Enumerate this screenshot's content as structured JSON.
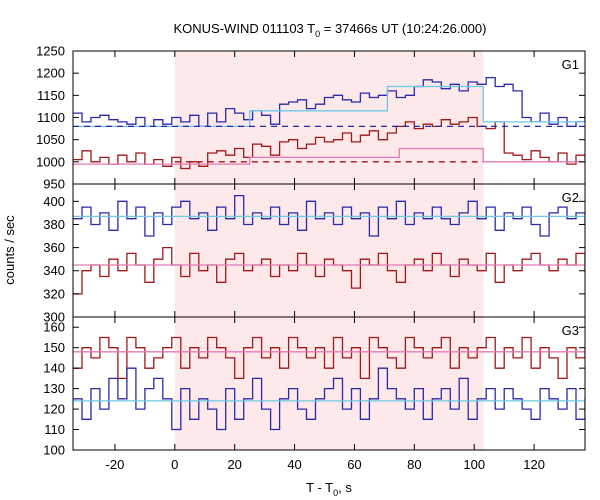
{
  "chart_data": {
    "type": "line",
    "title_main": "KONUS-WIND 011103 T",
    "title_sub": "0",
    "title_rest": " = 37466s UT (10:24:26.000)",
    "xlabel_main": "T - T",
    "xlabel_sub": "0",
    "xlabel_rest": ", s",
    "ylabel": "counts / sec",
    "xlim": [
      -34,
      137
    ],
    "xticks": [
      -20,
      0,
      20,
      40,
      60,
      80,
      100,
      120
    ],
    "xtick_labels": [
      "-20",
      "0",
      "20",
      "40",
      "60",
      "80",
      "100",
      "120"
    ],
    "shaded_interval": [
      0,
      103
    ],
    "colors": {
      "shade": "#fde8ea",
      "blue": "#2a2aa8",
      "red": "#a01818",
      "fit_blue": "#6ec8e8",
      "fit_pink": "#e07ab8",
      "frame": "#000000"
    },
    "panels": [
      {
        "name": "G1",
        "ylim": [
          950,
          1250
        ],
        "yticks": [
          950,
          1000,
          1050,
          1100,
          1150,
          1200,
          1250
        ],
        "ytick_labels": [
          "950",
          "1000",
          "1050",
          "1100",
          "1150",
          "1200",
          "1250"
        ],
        "bin_start": -34,
        "bin_width": 3,
        "blue_values": [
          1110,
          1090,
          1100,
          1105,
          1095,
          1090,
          1085,
          1100,
          1080,
          1095,
          1085,
          1100,
          1090,
          1105,
          1080,
          1110,
          1090,
          1120,
          1110,
          1095,
          1115,
          1105,
          1085,
          1130,
          1135,
          1140,
          1120,
          1130,
          1145,
          1150,
          1140,
          1135,
          1155,
          1145,
          1150,
          1160,
          1145,
          1150,
          1170,
          1185,
          1180,
          1165,
          1175,
          1160,
          1180,
          1175,
          1190,
          1170,
          1175,
          1160,
          1100,
          1090,
          1110,
          1085,
          1100,
          1080,
          1090,
          1105,
          1080
        ],
        "red_values": [
          1005,
          1025,
          1000,
          1010,
          995,
          1015,
          1000,
          1020,
          995,
          1005,
          990,
          1010,
          985,
          1000,
          990,
          1020,
          1025,
          1015,
          1030,
          1010,
          1040,
          1035,
          1015,
          1045,
          1050,
          1030,
          1040,
          1055,
          1045,
          1050,
          1065,
          1045,
          1060,
          1070,
          1050,
          1065,
          1080,
          1090,
          1075,
          1085,
          1080,
          1095,
          1085,
          1090,
          1100,
          1080,
          1075,
          1090,
          1020,
          1015,
          1005,
          1025,
          1010,
          1000,
          1020,
          995,
          1015,
          1005,
          1000
        ],
        "blue_fit": [
          [
            -34,
            1080
          ],
          [
            25,
            1080
          ],
          [
            25,
            1115
          ],
          [
            71,
            1115
          ],
          [
            71,
            1170
          ],
          [
            103,
            1170
          ],
          [
            103,
            1090
          ],
          [
            137,
            1090
          ]
        ],
        "red_fit": [
          [
            -34,
            995
          ],
          [
            25,
            995
          ],
          [
            25,
            1010
          ],
          [
            75,
            1010
          ],
          [
            75,
            1030
          ],
          [
            103,
            1030
          ],
          [
            103,
            1000
          ],
          [
            137,
            1000
          ]
        ],
        "blue_bg": [
          [
            -34,
            1080
          ],
          [
            137,
            1080
          ]
        ],
        "red_bg": [
          [
            0,
            1000
          ],
          [
            103,
            1000
          ]
        ]
      },
      {
        "name": "G2",
        "ylim": [
          300,
          415
        ],
        "yticks": [
          300,
          320,
          340,
          360,
          380,
          400
        ],
        "ytick_labels": [
          "300",
          "320",
          "340",
          "360",
          "380",
          "400"
        ],
        "bin_start": -34,
        "bin_width": 3,
        "blue_values": [
          385,
          395,
          380,
          390,
          375,
          400,
          385,
          395,
          370,
          390,
          380,
          395,
          400,
          385,
          390,
          375,
          395,
          385,
          405,
          380,
          390,
          385,
          395,
          380,
          390,
          375,
          400,
          385,
          390,
          380,
          395,
          385,
          390,
          370,
          395,
          385,
          400,
          380,
          390,
          385,
          395,
          385,
          380,
          390,
          400,
          385,
          395,
          375,
          390,
          385,
          395,
          380,
          370,
          390,
          395,
          385,
          390,
          380,
          395
        ],
        "red_values": [
          320,
          340,
          345,
          335,
          350,
          340,
          355,
          345,
          330,
          350,
          360,
          345,
          335,
          355,
          340,
          345,
          330,
          350,
          355,
          340,
          345,
          350,
          335,
          345,
          340,
          355,
          345,
          335,
          350,
          345,
          340,
          325,
          350,
          345,
          355,
          340,
          330,
          345,
          350,
          340,
          355,
          345,
          335,
          350,
          345,
          340,
          355,
          330,
          345,
          340,
          350,
          355,
          345,
          340,
          350,
          345,
          355,
          340,
          350
        ],
        "blue_fit": [
          [
            -34,
            387
          ],
          [
            137,
            387
          ]
        ],
        "red_fit": [
          [
            -34,
            345
          ],
          [
            137,
            345
          ]
        ]
      },
      {
        "name": "G3",
        "ylim": [
          100,
          165
        ],
        "yticks": [
          100,
          110,
          120,
          130,
          140,
          150,
          160
        ],
        "ytick_labels": [
          "100",
          "110",
          "120",
          "130",
          "140",
          "150",
          "160"
        ],
        "bin_start": -34,
        "bin_width": 3,
        "blue_values": [
          125,
          115,
          130,
          120,
          135,
          125,
          140,
          120,
          130,
          135,
          125,
          110,
          130,
          115,
          125,
          120,
          110,
          130,
          115,
          125,
          135,
          120,
          110,
          125,
          130,
          120,
          115,
          125,
          130,
          135,
          120,
          130,
          115,
          125,
          140,
          130,
          125,
          120,
          130,
          115,
          125,
          130,
          120,
          135,
          115,
          125,
          130,
          120,
          130,
          125,
          120,
          115,
          130,
          125,
          120,
          130,
          115,
          125,
          120
        ],
        "red_values": [
          140,
          150,
          145,
          155,
          150,
          135,
          155,
          150,
          140,
          145,
          150,
          155,
          140,
          150,
          145,
          155,
          150,
          145,
          135,
          150,
          155,
          145,
          150,
          140,
          155,
          150,
          145,
          150,
          140,
          155,
          145,
          150,
          135,
          155,
          150,
          145,
          140,
          155,
          150,
          145,
          150,
          155,
          140,
          150,
          145,
          150,
          155,
          140,
          150,
          145,
          155,
          140,
          150,
          145,
          135,
          150,
          145,
          150,
          155
        ],
        "blue_fit": [
          [
            -34,
            124
          ],
          [
            137,
            124
          ]
        ],
        "red_fit": [
          [
            -34,
            148
          ],
          [
            137,
            148
          ]
        ]
      }
    ]
  }
}
